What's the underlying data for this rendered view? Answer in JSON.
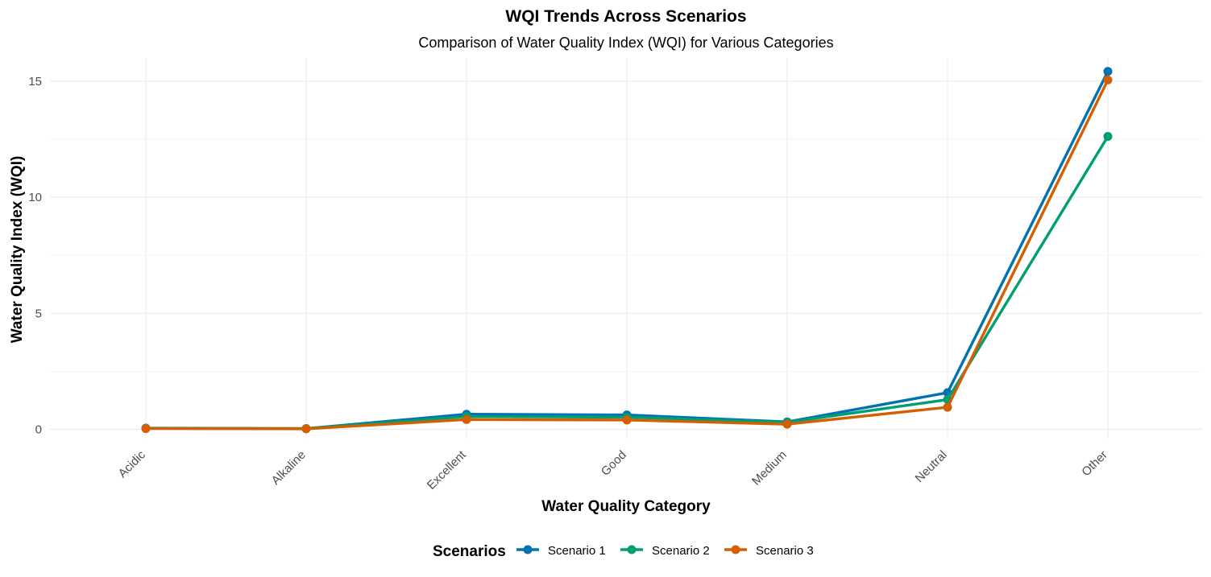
{
  "chart_data": {
    "type": "line",
    "title": "WQI Trends Across Scenarios",
    "subtitle": "Comparison of Water Quality Index (WQI) for Various Categories",
    "xlabel": "Water Quality Category",
    "ylabel": "Water Quality Index (WQI)",
    "categories": [
      "Acidic",
      "Alkaline",
      "Excellent",
      "Good",
      "Medium",
      "Neutral",
      "Other"
    ],
    "ylim": [
      -0.4,
      16
    ],
    "yticks": [
      0,
      5,
      10,
      15
    ],
    "grid": true,
    "legend": {
      "title": "Scenarios",
      "position": "bottom"
    },
    "series": [
      {
        "name": "Scenario 1",
        "color": "#0072B2",
        "values": [
          0.05,
          0.03,
          0.65,
          0.62,
          0.32,
          1.58,
          15.42
        ]
      },
      {
        "name": "Scenario 2",
        "color": "#009E73",
        "values": [
          0.04,
          0.03,
          0.55,
          0.52,
          0.3,
          1.28,
          12.62
        ]
      },
      {
        "name": "Scenario 3",
        "color": "#D55E00",
        "values": [
          0.03,
          0.02,
          0.42,
          0.4,
          0.22,
          0.95,
          15.05
        ]
      }
    ]
  }
}
